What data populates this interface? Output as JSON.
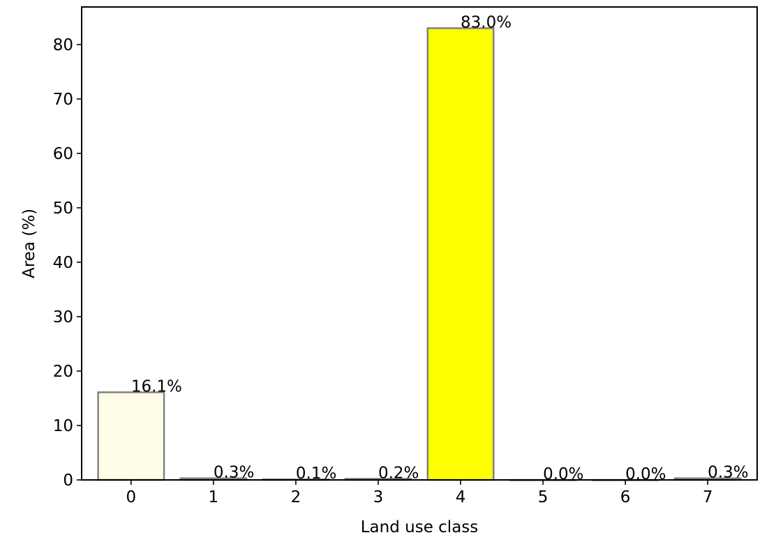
{
  "chart_data": {
    "type": "bar",
    "categories": [
      "0",
      "1",
      "2",
      "3",
      "4",
      "5",
      "6",
      "7"
    ],
    "values": [
      16.1,
      0.3,
      0.1,
      0.2,
      83.0,
      0.0,
      0.0,
      0.3
    ],
    "bar_labels": [
      "16.1%",
      "0.3%",
      "0.1%",
      "0.2%",
      "83.0%",
      "0.0%",
      "0.0%",
      "0.3%"
    ],
    "bar_colors": [
      "#fffde6",
      "#fffde6",
      "#fffde6",
      "#fffde6",
      "#ffff00",
      "#fffde6",
      "#fffde6",
      "#fffde6"
    ],
    "bar_edge_color": "#808080",
    "xlabel": "Land use class",
    "ylabel": "Area (%)",
    "ylim": [
      0,
      86.9
    ],
    "yticks": [
      0,
      10,
      20,
      30,
      40,
      50,
      60,
      70,
      80
    ],
    "grid": false
  }
}
